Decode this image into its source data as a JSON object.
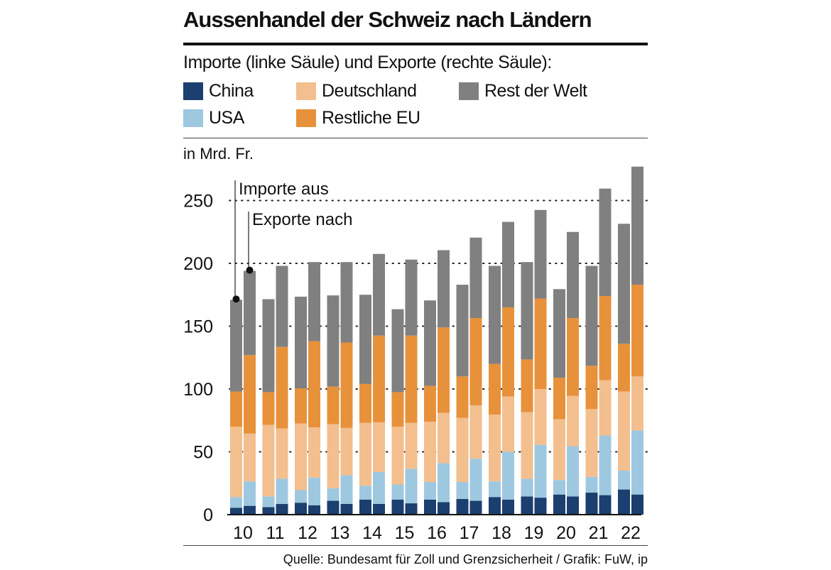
{
  "title": "Aussenhandel der Schweiz nach Ländern",
  "subtitle": "Importe (linke Säule) und Exporte (rechte Säule):",
  "unit_label": "in Mrd. Fr.",
  "source": "Quelle: Bundesamt für Zoll und Grenzsicherheit / Grafik: FuW, ip",
  "annotations": {
    "imports": "Importe aus",
    "exports": "Exporte nach"
  },
  "colors": {
    "China": "#1b3f6e",
    "USA": "#9ec8e0",
    "Deutschland": "#f3bf8e",
    "Restliche EU": "#e8913b",
    "Rest der Welt": "#808080"
  },
  "chart_data": {
    "type": "bar",
    "stacked": true,
    "grouped": true,
    "title": "Aussenhandel der Schweiz nach Ländern",
    "ylabel": "in Mrd. Fr.",
    "ylim": [
      0,
      280
    ],
    "yticks": [
      0,
      50,
      100,
      150,
      200,
      250
    ],
    "grid": "dotted horizontal",
    "categories": [
      "10",
      "11",
      "12",
      "13",
      "14",
      "15",
      "16",
      "17",
      "18",
      "19",
      "20",
      "21",
      "22"
    ],
    "legend": [
      "China",
      "Deutschland",
      "Rest der Welt",
      "USA",
      "Restliche EU"
    ],
    "stack_order": [
      "China",
      "USA",
      "Deutschland",
      "Restliche EU",
      "Rest der Welt"
    ],
    "imports": {
      "China": [
        5.5,
        6,
        9.5,
        11,
        12,
        12,
        12,
        12.5,
        14,
        14.5,
        16,
        17.5,
        20
      ],
      "USA": [
        8.5,
        8.5,
        10,
        10,
        11,
        12,
        14,
        13.5,
        12.5,
        14,
        11.5,
        12.5,
        15
      ],
      "Deutschland": [
        56,
        57,
        53,
        51,
        50,
        46,
        48,
        51,
        53,
        53,
        48.5,
        54,
        63
      ],
      "Restliche EU": [
        28,
        26,
        28,
        30,
        31,
        27.5,
        28.5,
        33,
        40.5,
        42,
        33,
        34.5,
        38
      ],
      "Rest der Welt": [
        73,
        74,
        73,
        72.5,
        71,
        66,
        68,
        73,
        78,
        77.5,
        70.5,
        79.5,
        95.5
      ]
    },
    "exports": {
      "China": [
        7,
        8.5,
        7.5,
        8.5,
        8.5,
        9,
        10,
        11,
        12,
        13.5,
        14.5,
        15.5,
        16
      ],
      "USA": [
        19.5,
        20,
        22,
        23,
        25.5,
        27.5,
        31,
        33.5,
        38,
        42,
        40,
        47.5,
        51
      ],
      "Deutschland": [
        38,
        40,
        40,
        37.5,
        39.5,
        36.5,
        40,
        42.5,
        44,
        44.5,
        40,
        44,
        43
      ],
      "Restliche EU": [
        62.5,
        65,
        68.5,
        68,
        69,
        69.5,
        68,
        69.5,
        71,
        72,
        62,
        67,
        73
      ],
      "Rest der Welt": [
        67,
        64.5,
        63,
        64,
        65,
        60.5,
        61.5,
        64,
        68,
        70.5,
        68.5,
        85.5,
        94
      ]
    }
  }
}
